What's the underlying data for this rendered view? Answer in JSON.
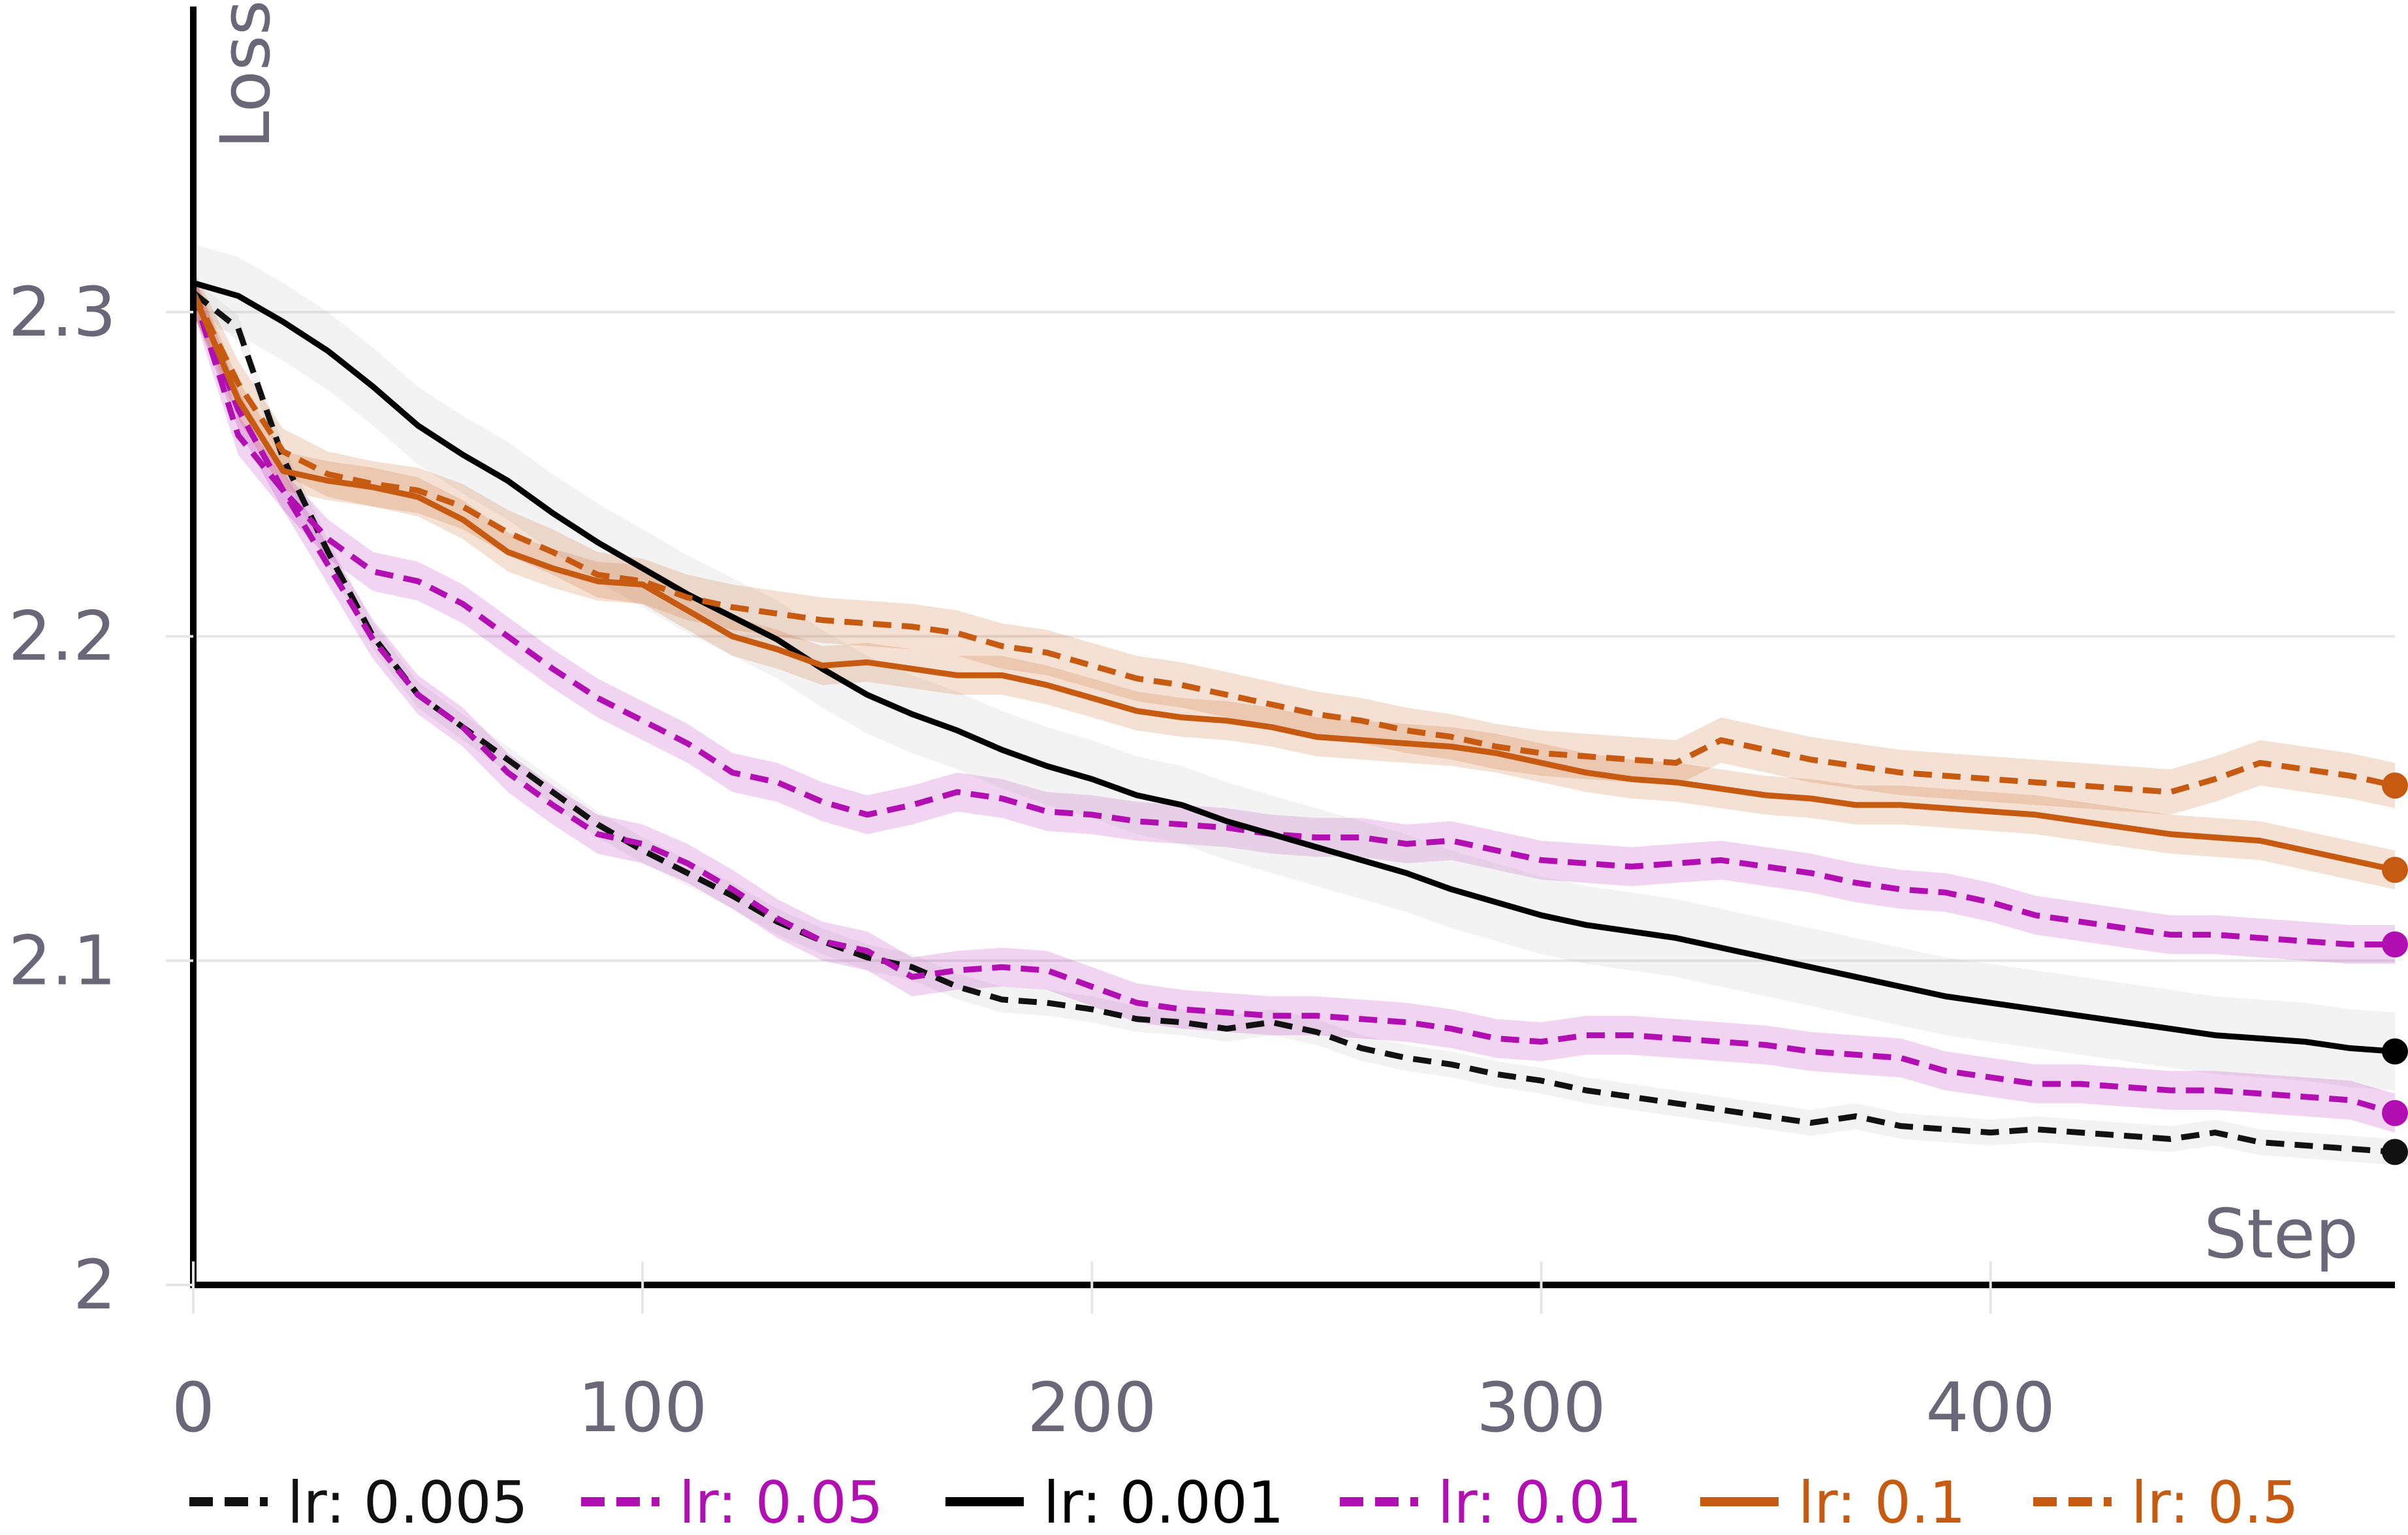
{
  "chart_data": {
    "type": "line",
    "title": "",
    "xlabel": "Step",
    "ylabel": "Loss",
    "xlim": [
      0,
      490
    ],
    "ylim": [
      2.0,
      2.38
    ],
    "xticks": [
      0,
      100,
      200,
      300,
      400
    ],
    "xtick_labels": [
      "0",
      "100",
      "200",
      "300",
      "400"
    ],
    "yticks": [
      2.0,
      2.1,
      2.2,
      2.3
    ],
    "ytick_labels": [
      "2",
      "2.1",
      "2.2",
      "2.3"
    ],
    "grid": "horizontal",
    "legend_position": "bottom",
    "x": [
      0,
      10,
      20,
      30,
      40,
      50,
      60,
      70,
      80,
      90,
      100,
      110,
      120,
      130,
      140,
      150,
      160,
      170,
      180,
      190,
      200,
      210,
      220,
      230,
      240,
      250,
      260,
      270,
      280,
      290,
      300,
      310,
      320,
      330,
      340,
      350,
      360,
      370,
      380,
      390,
      400,
      410,
      420,
      430,
      440,
      450,
      460,
      470,
      480,
      490
    ],
    "series": [
      {
        "name": "lr: 0.005",
        "color": "#111111",
        "dash": "dashed",
        "band": 0.004,
        "values": [
          2.306,
          2.295,
          2.255,
          2.226,
          2.2,
          2.182,
          2.172,
          2.162,
          2.152,
          2.142,
          2.134,
          2.127,
          2.12,
          2.112,
          2.106,
          2.101,
          2.098,
          2.092,
          2.088,
          2.087,
          2.085,
          2.082,
          2.081,
          2.079,
          2.081,
          2.078,
          2.073,
          2.07,
          2.068,
          2.065,
          2.063,
          2.06,
          2.058,
          2.056,
          2.054,
          2.052,
          2.05,
          2.052,
          2.049,
          2.048,
          2.047,
          2.048,
          2.047,
          2.046,
          2.045,
          2.047,
          2.044,
          2.043,
          2.042,
          2.041
        ]
      },
      {
        "name": "lr: 0.05",
        "color": "#b10fb1",
        "dash": "dashed",
        "band": 0.006,
        "values": [
          2.306,
          2.262,
          2.245,
          2.23,
          2.22,
          2.217,
          2.21,
          2.2,
          2.19,
          2.181,
          2.174,
          2.167,
          2.158,
          2.155,
          2.149,
          2.145,
          2.148,
          2.152,
          2.15,
          2.146,
          2.145,
          2.143,
          2.142,
          2.141,
          2.139,
          2.138,
          2.138,
          2.136,
          2.137,
          2.134,
          2.131,
          2.13,
          2.129,
          2.13,
          2.131,
          2.129,
          2.127,
          2.124,
          2.122,
          2.121,
          2.118,
          2.114,
          2.112,
          2.11,
          2.108,
          2.108,
          2.107,
          2.106,
          2.105,
          2.105
        ]
      },
      {
        "name": "lr: 0.001",
        "color": "#000000",
        "dash": "solid",
        "band": 0.012,
        "values": [
          2.309,
          2.305,
          2.297,
          2.288,
          2.277,
          2.265,
          2.256,
          2.248,
          2.238,
          2.229,
          2.221,
          2.213,
          2.206,
          2.199,
          2.19,
          2.182,
          2.176,
          2.171,
          2.165,
          2.16,
          2.156,
          2.151,
          2.148,
          2.143,
          2.139,
          2.135,
          2.131,
          2.127,
          2.122,
          2.118,
          2.114,
          2.111,
          2.109,
          2.107,
          2.104,
          2.101,
          2.098,
          2.095,
          2.092,
          2.089,
          2.087,
          2.085,
          2.083,
          2.081,
          2.079,
          2.077,
          2.076,
          2.075,
          2.073,
          2.072
        ]
      },
      {
        "name": "lr: 0.01",
        "color": "#b10fb1",
        "dash": "dashed",
        "band": 0.006,
        "values": [
          2.306,
          2.27,
          2.245,
          2.222,
          2.199,
          2.182,
          2.172,
          2.158,
          2.148,
          2.139,
          2.136,
          2.13,
          2.122,
          2.113,
          2.106,
          2.103,
          2.095,
          2.097,
          2.098,
          2.097,
          2.092,
          2.087,
          2.085,
          2.084,
          2.083,
          2.083,
          2.082,
          2.081,
          2.079,
          2.076,
          2.075,
          2.077,
          2.077,
          2.076,
          2.075,
          2.074,
          2.072,
          2.071,
          2.07,
          2.066,
          2.064,
          2.062,
          2.062,
          2.061,
          2.06,
          2.06,
          2.059,
          2.058,
          2.057,
          2.053
        ]
      },
      {
        "name": "lr: 0.1",
        "color": "#c65a11",
        "dash": "solid",
        "band": 0.006,
        "values": [
          2.306,
          2.273,
          2.251,
          2.248,
          2.246,
          2.243,
          2.236,
          2.226,
          2.221,
          2.217,
          2.216,
          2.208,
          2.2,
          2.196,
          2.191,
          2.192,
          2.19,
          2.188,
          2.188,
          2.185,
          2.181,
          2.177,
          2.175,
          2.174,
          2.172,
          2.169,
          2.168,
          2.167,
          2.166,
          2.164,
          2.161,
          2.158,
          2.156,
          2.155,
          2.153,
          2.151,
          2.15,
          2.148,
          2.148,
          2.147,
          2.146,
          2.145,
          2.143,
          2.141,
          2.139,
          2.138,
          2.137,
          2.134,
          2.131,
          2.128
        ]
      },
      {
        "name": "lr: 0.5",
        "color": "#c65a11",
        "dash": "dashed",
        "band": 0.007,
        "values": [
          2.306,
          2.278,
          2.257,
          2.25,
          2.247,
          2.245,
          2.24,
          2.232,
          2.226,
          2.219,
          2.217,
          2.212,
          2.209,
          2.207,
          2.205,
          2.204,
          2.203,
          2.201,
          2.197,
          2.195,
          2.191,
          2.187,
          2.185,
          2.182,
          2.179,
          2.176,
          2.174,
          2.171,
          2.169,
          2.166,
          2.164,
          2.163,
          2.162,
          2.161,
          2.168,
          2.165,
          2.162,
          2.16,
          2.158,
          2.157,
          2.156,
          2.155,
          2.154,
          2.153,
          2.152,
          2.156,
          2.161,
          2.159,
          2.157,
          2.154
        ]
      }
    ]
  }
}
